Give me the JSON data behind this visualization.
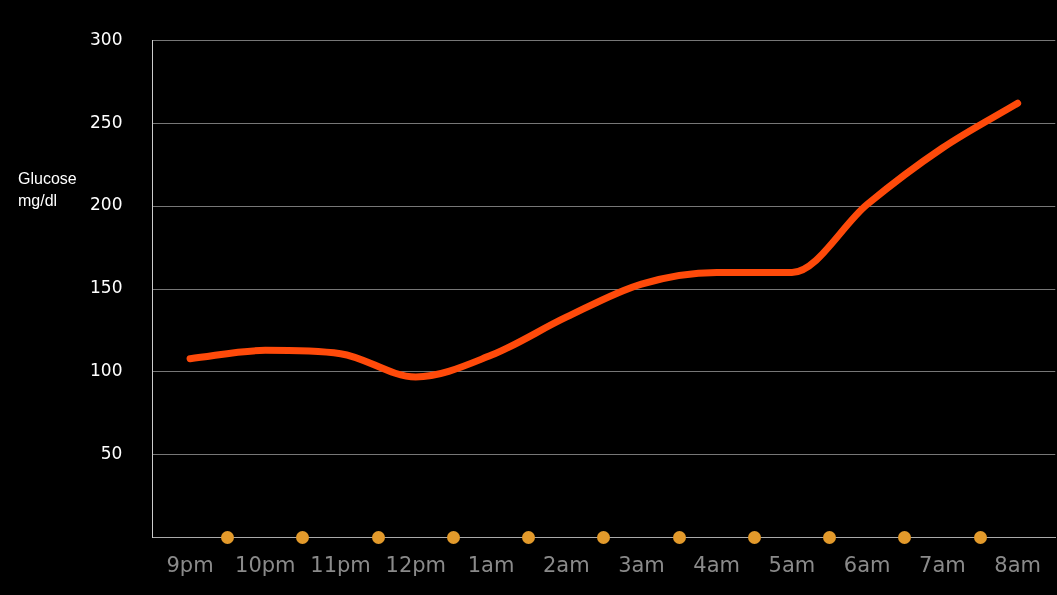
{
  "chart_data": {
    "type": "line",
    "ylabel": "Glucose mg/dl",
    "categories": [
      "9pm",
      "10pm",
      "11pm",
      "12pm",
      "1am",
      "2am",
      "3am",
      "4am",
      "5am",
      "6am",
      "7am",
      "8am"
    ],
    "series": [
      {
        "color": "#ff4a0a",
        "values": [
          108,
          113,
          111,
          97,
          110,
          133,
          153,
          160,
          160,
          201,
          235,
          262
        ]
      }
    ],
    "ylim": [
      0,
      300
    ],
    "yticks": [
      50,
      100,
      150,
      200,
      250,
      300
    ],
    "grid": "y",
    "marker": "none",
    "line_style": "solid"
  }
}
